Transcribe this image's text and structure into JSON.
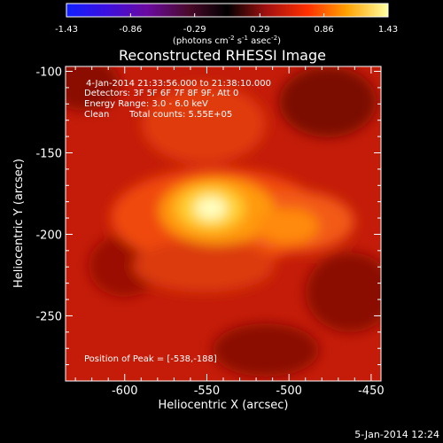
{
  "colorbar": {
    "ticks": [
      "-1.43",
      "-0.86",
      "-0.29",
      "0.29",
      "0.86",
      "1.43"
    ],
    "units_prefix": "(photons cm",
    "units_exp1": "-2",
    "units_mid1": " s",
    "units_exp2": "-1",
    "units_mid2": " asec",
    "units_exp3": "-2",
    "units_suffix": ")",
    "range": [
      -1.43,
      1.43
    ]
  },
  "chart_data": {
    "type": "heatmap",
    "title": "Reconstructed RHESSI Image",
    "xlabel": "Heliocentric X (arcsec)",
    "ylabel": "Heliocentric Y (arcsec)",
    "xlim": [
      -636,
      -444
    ],
    "ylim": [
      -290,
      -97
    ],
    "xticks": [
      "-600",
      "-550",
      "-500",
      "-450"
    ],
    "yticks": [
      "-100",
      "-150",
      "-200",
      "-250"
    ],
    "xtick_values": [
      -600,
      -550,
      -500,
      -450
    ],
    "ytick_values": [
      -100,
      -150,
      -200,
      -250
    ],
    "colormap": "hot",
    "peak": [
      -538,
      -188
    ],
    "annotations": {
      "time": "4-Jan-2014 21:33:56.000 to 21:38:10.000",
      "detectors": "Detectors: 3F 5F 6F 7F 8F 9F, Att 0",
      "energy": "Energy Range: 3.0 - 6.0 keV",
      "method": "Clean",
      "counts": "Total counts: 5.55E+05",
      "peak_text": "Position of Peak = [-538,-188]"
    }
  },
  "footer": {
    "date": "5-Jan-2014 12:24"
  }
}
